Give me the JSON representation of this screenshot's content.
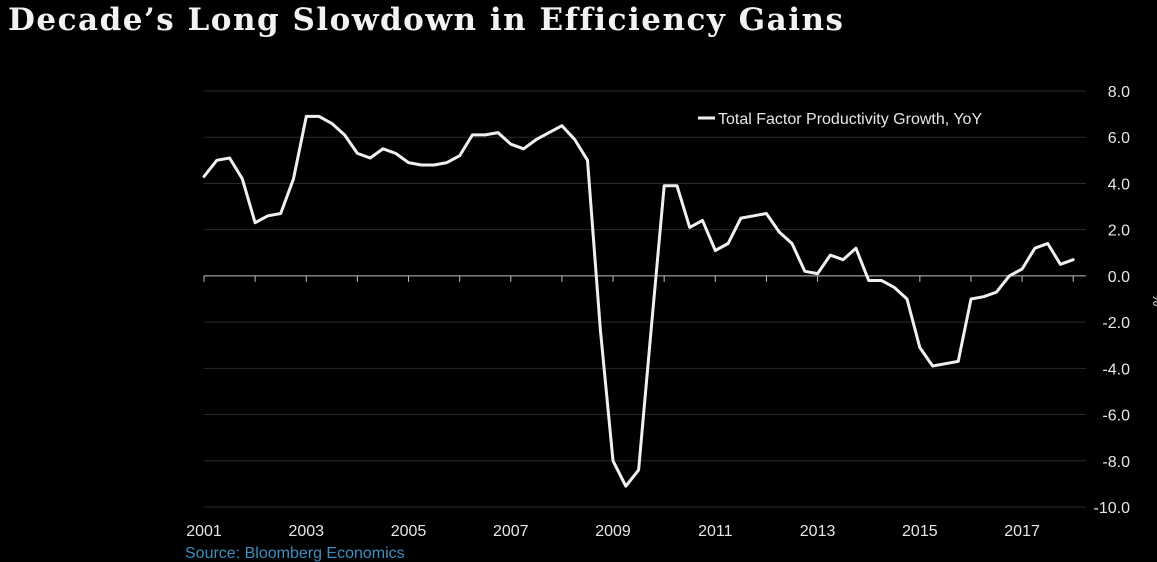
{
  "title": "Decade’s Long Slowdown in Efficiency Gains",
  "source": "Source: Bloomberg Economics",
  "colors": {
    "background": "#000000",
    "line": "#f0f0f0",
    "grid": "#2a2a2a",
    "zero_line": "#bfbfbf",
    "source_text": "#3a8fc0"
  },
  "chart_data": {
    "type": "line",
    "title": "Decade’s Long Slowdown in Efficiency Gains",
    "xlabel": "",
    "ylabel": "%",
    "xlim": [
      2001.0,
      2018.25
    ],
    "ylim": [
      -10.0,
      8.0
    ],
    "x_ticks": [
      "2001",
      "2003",
      "2005",
      "2007",
      "2009",
      "2011",
      "2013",
      "2015",
      "2017"
    ],
    "y_ticks": [
      "8.0",
      "6.0",
      "4.0",
      "2.0",
      "0.0",
      "-2.0",
      "-4.0",
      "-6.0",
      "-8.0",
      "-10.0"
    ],
    "y_tick_values": [
      8,
      6,
      4,
      2,
      0,
      -2,
      -4,
      -6,
      -8,
      -10
    ],
    "grid": "horizontal",
    "legend_position": "top-right",
    "series": [
      {
        "name": "Total Factor Productivity Growth, YoY",
        "x": [
          2001.0,
          2001.25,
          2001.5,
          2001.75,
          2002.0,
          2002.25,
          2002.5,
          2002.75,
          2003.0,
          2003.25,
          2003.5,
          2003.75,
          2004.0,
          2004.25,
          2004.5,
          2004.75,
          2005.0,
          2005.25,
          2005.5,
          2005.75,
          2006.0,
          2006.25,
          2006.5,
          2006.75,
          2007.0,
          2007.25,
          2007.5,
          2007.75,
          2008.0,
          2008.25,
          2008.5,
          2008.75,
          2009.0,
          2009.25,
          2009.5,
          2009.75,
          2010.0,
          2010.25,
          2010.5,
          2010.75,
          2011.0,
          2011.25,
          2011.5,
          2011.75,
          2012.0,
          2012.25,
          2012.5,
          2012.75,
          2013.0,
          2013.25,
          2013.5,
          2013.75,
          2014.0,
          2014.25,
          2014.5,
          2014.75,
          2015.0,
          2015.25,
          2015.5,
          2015.75,
          2016.0,
          2016.25,
          2016.5,
          2016.75,
          2017.0,
          2017.25,
          2017.5,
          2017.75,
          2018.0
        ],
        "values": [
          4.3,
          5.0,
          5.1,
          4.2,
          2.3,
          2.6,
          2.7,
          4.2,
          6.9,
          6.9,
          6.6,
          6.1,
          5.3,
          5.1,
          5.5,
          5.3,
          4.9,
          4.8,
          4.8,
          4.9,
          5.2,
          6.1,
          6.1,
          6.2,
          5.7,
          5.5,
          5.9,
          6.2,
          6.5,
          5.9,
          5.0,
          -2.3,
          -8.0,
          -9.1,
          -8.4,
          -2.2,
          3.9,
          3.9,
          2.1,
          2.4,
          1.1,
          1.4,
          2.5,
          2.6,
          2.7,
          1.9,
          1.4,
          0.2,
          0.1,
          0.9,
          0.7,
          1.2,
          -0.2,
          -0.2,
          -0.5,
          -1.0,
          -3.1,
          -3.9,
          -3.8,
          -3.7,
          -1.0,
          -0.9,
          -0.7,
          -0.0,
          0.3,
          1.2,
          1.4,
          0.5,
          0.7
        ]
      }
    ]
  }
}
